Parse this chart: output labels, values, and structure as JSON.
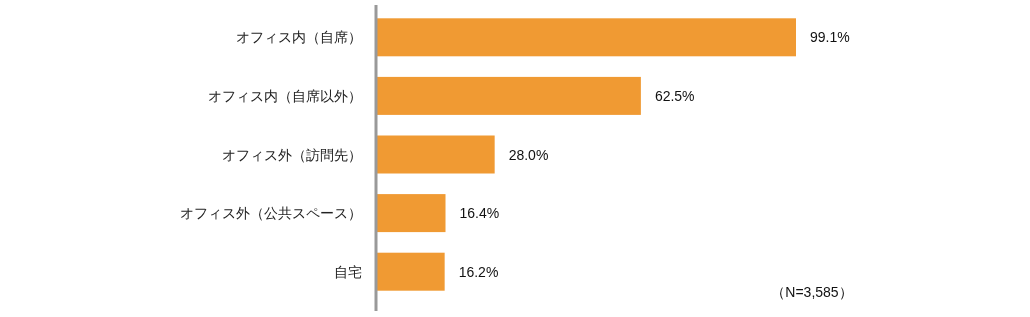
{
  "chart_data": {
    "type": "bar",
    "orientation": "horizontal",
    "categories": [
      "オフィス内（自席）",
      "オフィス内（自席以外）",
      "オフィス外（訪問先）",
      "オフィス外（公共スペース）",
      "自宅"
    ],
    "values": [
      99.1,
      62.5,
      28.0,
      16.4,
      16.2
    ],
    "value_labels": [
      "99.1%",
      "62.5%",
      "28.0%",
      "16.4%",
      "16.2%"
    ],
    "color": "#f09a33",
    "annotations": [
      "（N=3,585）"
    ]
  }
}
